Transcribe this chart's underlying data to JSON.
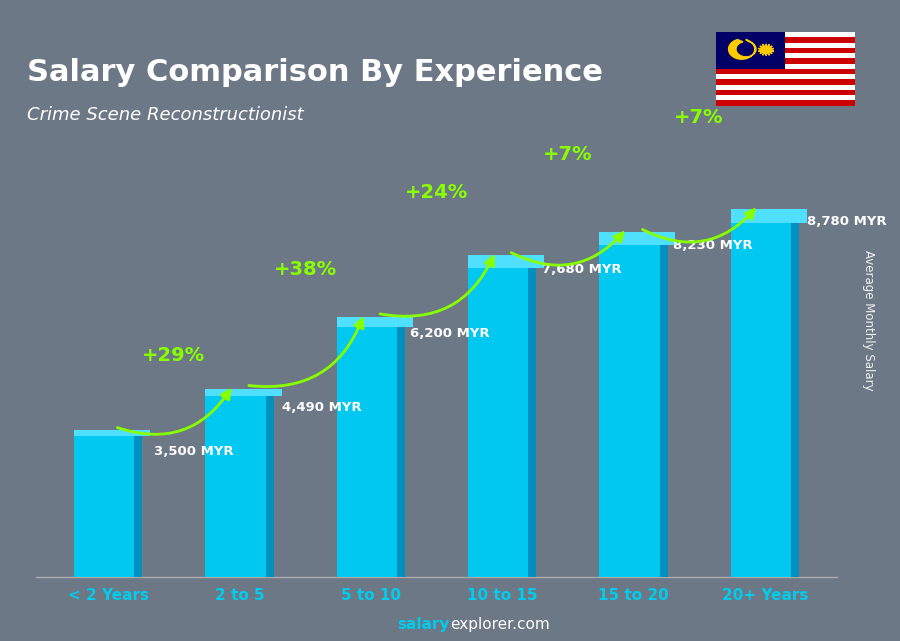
{
  "title": "Salary Comparison By Experience",
  "subtitle": "Crime Scene Reconstructionist",
  "categories": [
    "< 2 Years",
    "2 to 5",
    "5 to 10",
    "10 to 15",
    "15 to 20",
    "20+ Years"
  ],
  "values": [
    3500,
    4490,
    6200,
    7680,
    8230,
    8780
  ],
  "value_labels": [
    "3,500 MYR",
    "4,490 MYR",
    "6,200 MYR",
    "7,680 MYR",
    "8,230 MYR",
    "8,780 MYR"
  ],
  "pct_labels": [
    "+29%",
    "+38%",
    "+24%",
    "+7%",
    "+7%"
  ],
  "bar_color_main": "#00C8F0",
  "bar_color_top": "#50E0FF",
  "bar_color_side": "#0090C0",
  "bg_color": "#7a8a96",
  "title_color": "#FFFFFF",
  "subtitle_color": "#FFFFFF",
  "value_label_color": "#FFFFFF",
  "pct_color": "#88FF00",
  "cat_label_color": "#00CCEE",
  "ylabel_text": "Average Monthly Salary",
  "ylim": [
    0,
    11000
  ],
  "footer_salary_color": "#FFFFFF",
  "footer_explorer_color": "#FFFFFF"
}
